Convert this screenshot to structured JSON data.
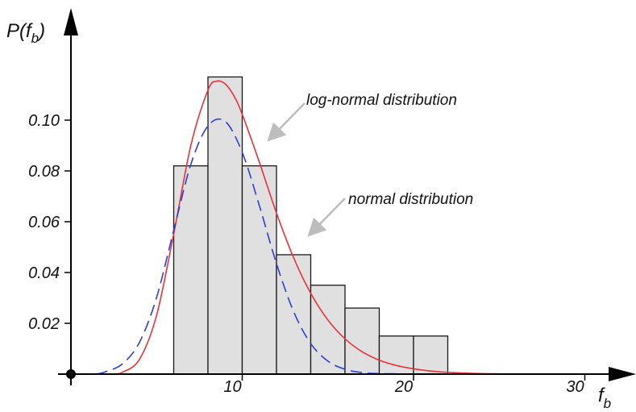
{
  "chart_data": {
    "type": "bar",
    "title": "",
    "xlabel": "f",
    "xlabel_sub": "b",
    "ylabel_prefix": "P(f",
    "ylabel_sub": "b",
    "ylabel_suffix": ")",
    "xlim": [
      0,
      32
    ],
    "ylim": [
      0,
      0.12
    ],
    "x_ticks": [
      10,
      20,
      30
    ],
    "y_ticks": [
      0.02,
      0.04,
      0.06,
      0.08,
      0.1
    ],
    "x_tick_labels": [
      "10",
      "20",
      "30"
    ],
    "y_tick_labels": [
      "0.02",
      "0.04",
      "0.06",
      "0.08",
      "0.10"
    ],
    "bin_width": 2,
    "histogram": {
      "bin_starts": [
        6,
        8,
        10,
        12,
        14,
        16,
        18,
        20,
        22
      ],
      "values": [
        0.082,
        0.117,
        0.082,
        0.047,
        0.035,
        0.026,
        0.015,
        0.015,
        0.0
      ]
    },
    "series": [
      {
        "name": "log-normal distribution",
        "kind": "line",
        "style": "solid",
        "color": "#e8333a",
        "x": [
          2.5,
          3,
          4,
          5,
          6,
          7,
          8,
          8.5,
          9,
          9.5,
          10,
          11,
          12,
          13,
          14,
          15,
          16,
          17,
          18,
          19,
          20,
          21,
          22,
          23,
          24,
          25
        ],
        "y": [
          0.0,
          0.0007,
          0.0058,
          0.0232,
          0.0552,
          0.0901,
          0.1118,
          0.1153,
          0.1143,
          0.1097,
          0.1023,
          0.0834,
          0.0634,
          0.0458,
          0.0318,
          0.0213,
          0.0139,
          0.0088,
          0.0055,
          0.0034,
          0.0021,
          0.0012,
          0.0007,
          0.0004,
          0.0002,
          0.0001
        ]
      },
      {
        "name": "normal distribution",
        "kind": "line",
        "style": "dashed",
        "color": "#2b3fd6",
        "x": [
          1.5,
          2,
          3,
          4,
          5,
          6,
          7,
          8,
          9,
          10,
          11,
          12,
          13,
          14,
          15,
          16,
          17,
          18,
          19,
          19.5
        ],
        "y": [
          0.0,
          0.0009,
          0.004,
          0.0125,
          0.0302,
          0.0566,
          0.0826,
          0.0977,
          0.0995,
          0.0873,
          0.0663,
          0.0435,
          0.0246,
          0.012,
          0.0051,
          0.0019,
          0.0006,
          0.0002,
          0.0001,
          0.0
        ]
      }
    ],
    "annotations": [
      {
        "text": "log-normal distribution",
        "points_to": "normal distribution"
      },
      {
        "text": "normal distribution",
        "points_to": "log-normal distribution"
      }
    ],
    "grid": false,
    "legend": "none"
  }
}
